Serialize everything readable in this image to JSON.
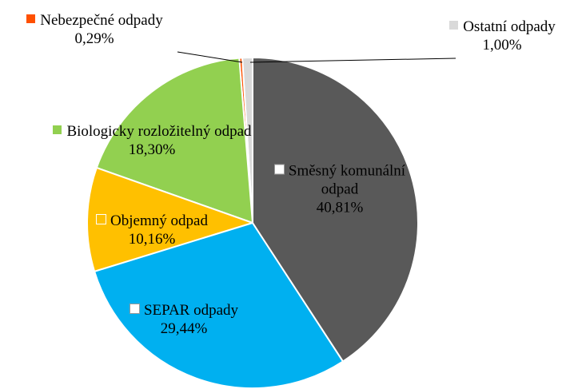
{
  "chart_data": {
    "type": "pie",
    "categories": [
      "Směsný komunální odpad",
      "SEPAR odpady",
      "Objemný odpad",
      "Biologicky rozložitelný odpad",
      "Nebezpečné odpady",
      "Ostatní odpady"
    ],
    "values": [
      40.81,
      29.44,
      10.16,
      18.3,
      0.29,
      1.0
    ],
    "value_labels": [
      "40,81%",
      "29,44%",
      "10,16%",
      "18,30%",
      "0,29%",
      "1,00%"
    ],
    "colors": [
      "#595959",
      "#00b0f0",
      "#ffc000",
      "#92d050",
      "#ff5000",
      "#d9d9d9"
    ]
  }
}
